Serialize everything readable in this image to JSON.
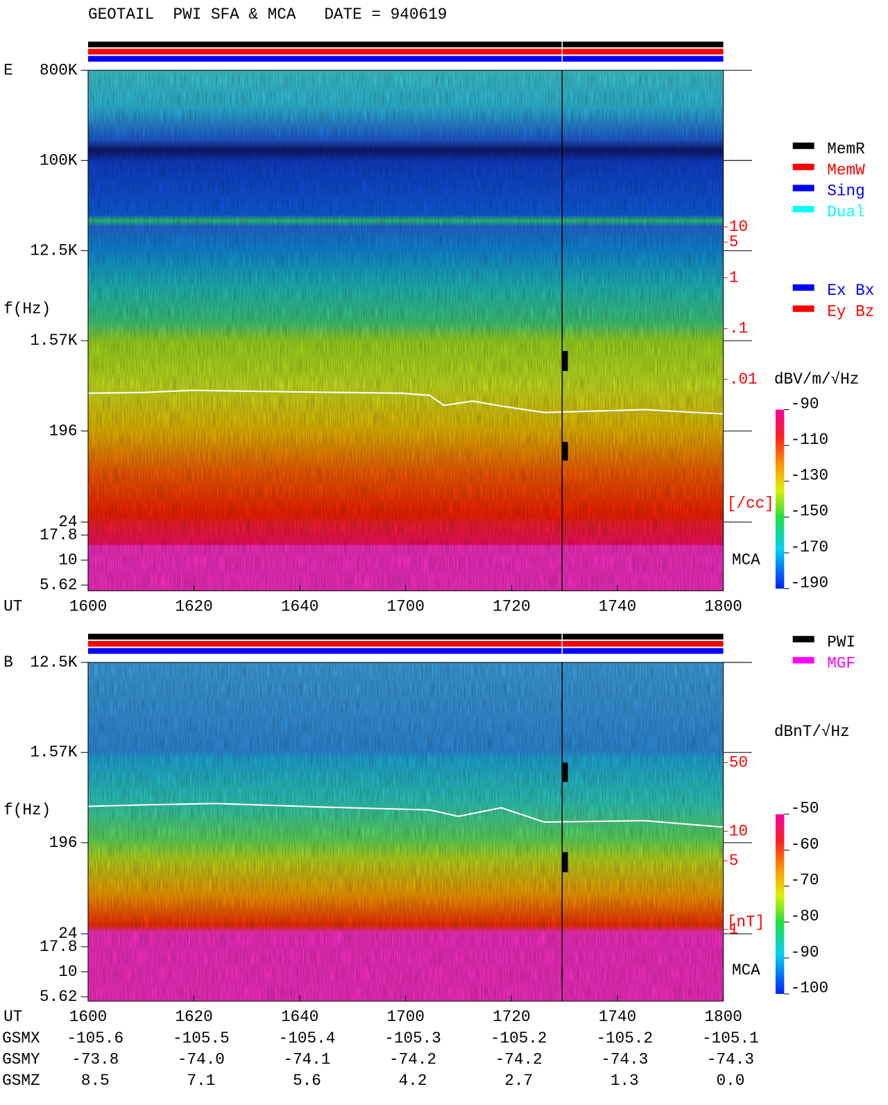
{
  "title": "GEOTAIL  PWI SFA & MCA   DATE = 940619",
  "chart_data": [
    {
      "type": "spectrogram",
      "panel_label": "E",
      "y_label": "f(Hz)",
      "x_label": "UT",
      "categories": [
        "1600",
        "1620",
        "1640",
        "1700",
        "1720",
        "1740",
        "1800"
      ],
      "log_y": true,
      "ylim": [
        4.92,
        800000
      ],
      "yticks": [
        {
          "value": 800000,
          "label": "800K"
        },
        {
          "value": 100000,
          "label": "100K"
        },
        {
          "value": 12500,
          "label": "12.5K"
        },
        {
          "value": 1570,
          "label": "1.57K"
        },
        196,
        24,
        17.8,
        10,
        5.62
      ],
      "y2lim": [
        7e-07,
        12000
      ],
      "y2ticks": [
        10,
        5,
        1,
        {
          "value": 0.1,
          "label": ".1"
        },
        {
          "value": 0.01,
          "label": ".01"
        }
      ],
      "y2_label": "[/cc]",
      "y2_color": "#ff0000",
      "region_label": "MCA",
      "colorbar": {
        "label": "dBV/m/√Hz",
        "lim": [
          -190,
          -90
        ],
        "ticks": [
          -90,
          -110,
          -130,
          -150,
          -170,
          -190
        ]
      },
      "legend": [
        {
          "name": "MemR",
          "color": "#000000"
        },
        {
          "name": "MemW",
          "color": "#ff0000"
        },
        {
          "name": "Sing",
          "color": "#0000ff"
        },
        {
          "name": "Dual",
          "color": "#00ffff"
        }
      ],
      "legend2": [
        {
          "name": "Ex Bx",
          "color": "#0000ff"
        },
        {
          "name": "Ey Bz",
          "color": "#ff0000"
        }
      ]
    },
    {
      "type": "spectrogram",
      "panel_label": "B",
      "y_label": "f(Hz)",
      "x_label": "UT",
      "categories": [
        "1600",
        "1620",
        "1640",
        "1700",
        "1720",
        "1740",
        "1800"
      ],
      "log_y": true,
      "ylim": [
        5.09,
        12500
      ],
      "yticks": [
        {
          "value": 12500,
          "label": "12.5K"
        },
        {
          "value": 1570,
          "label": "1.57K"
        },
        196,
        24,
        17.8,
        10,
        5.62
      ],
      "y2lim": [
        0.186,
        525
      ],
      "y2ticks": [
        50,
        10,
        5,
        1
      ],
      "y2_label": "[nT]",
      "y2_color": "#ff0000",
      "region_label": "MCA",
      "colorbar": {
        "label": "dBnT/√Hz",
        "lim": [
          -100,
          -50
        ],
        "ticks": [
          -50,
          -60,
          -70,
          -80,
          -90,
          -100
        ]
      },
      "legend": [
        {
          "name": "PWI",
          "color": "#000000"
        },
        {
          "name": "MGF",
          "color": "#ff00ff"
        }
      ]
    }
  ],
  "orbit_table": {
    "rows": [
      {
        "label": "GSMX",
        "values": [
          "-105.6",
          "-105.5",
          "-105.4",
          "-105.3",
          "-105.2",
          "-105.2",
          "-105.1"
        ]
      },
      {
        "label": "GSMY",
        "values": [
          "-73.8",
          "-74.0",
          "-74.1",
          "-74.2",
          "-74.2",
          "-74.3",
          "-74.3"
        ]
      },
      {
        "label": "GSMZ",
        "values": [
          "8.5",
          "7.1",
          "5.6",
          "4.2",
          "2.7",
          "1.3",
          "0.0"
        ]
      }
    ]
  }
}
